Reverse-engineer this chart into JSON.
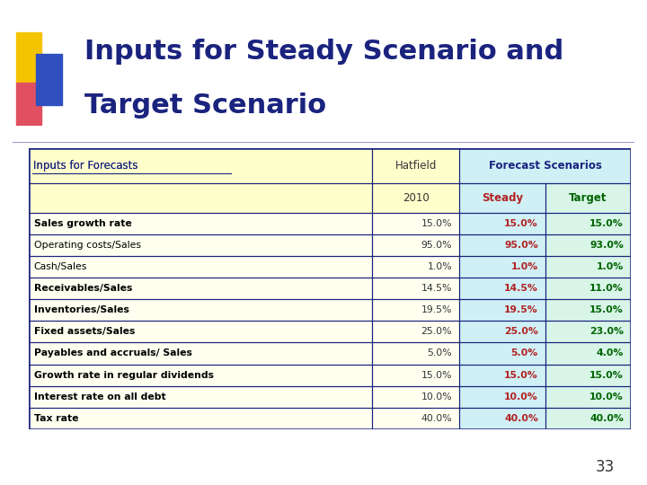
{
  "title_line1": "Inputs for Steady Scenario and",
  "title_line2": "Target Scenario",
  "title_color": "#1a237e",
  "slide_number": "33",
  "background_color": "#ffffff",
  "rows": [
    [
      "Sales growth rate",
      "15.0%",
      "15.0%",
      "15.0%"
    ],
    [
      "Operating costs/Sales",
      "95.0%",
      "95.0%",
      "93.0%"
    ],
    [
      "Cash/Sales",
      "1.0%",
      "1.0%",
      "1.0%"
    ],
    [
      "Receivables/Sales",
      "14.5%",
      "14.5%",
      "11.0%"
    ],
    [
      "Inventories/Sales",
      "19.5%",
      "19.5%",
      "15.0%"
    ],
    [
      "Fixed assets/Sales",
      "25.0%",
      "25.0%",
      "23.0%"
    ],
    [
      "Payables and accruals/ Sales",
      "5.0%",
      "5.0%",
      "4.0%"
    ],
    [
      "Growth rate in regular dividends",
      "15.0%",
      "15.0%",
      "15.0%"
    ],
    [
      "Interest rate on all debt",
      "10.0%",
      "10.0%",
      "10.0%"
    ],
    [
      "Tax rate",
      "40.0%",
      "40.0%",
      "40.0%"
    ]
  ],
  "col0_bold_rows": [
    0,
    3,
    4,
    5,
    6,
    7,
    8,
    9
  ],
  "table_border_color": "#1a237e",
  "header_bg_color": "#ffffcc",
  "steady_bg_color": "#cff0f5",
  "target_bg_color": "#d8f5e8",
  "row_bg_color": "#fffff0",
  "hatfield_text_color": "#333333",
  "steady_text_color": "#b22222",
  "target_text_color": "#006400",
  "col0_text_color": "#000000",
  "header_left_color": "#1a237e",
  "header_forecast_color": "#1a237e",
  "deco_yellow": "#f5c400",
  "deco_red": "#e05060",
  "deco_blue": "#3050c0",
  "line_color": "#9999cc"
}
